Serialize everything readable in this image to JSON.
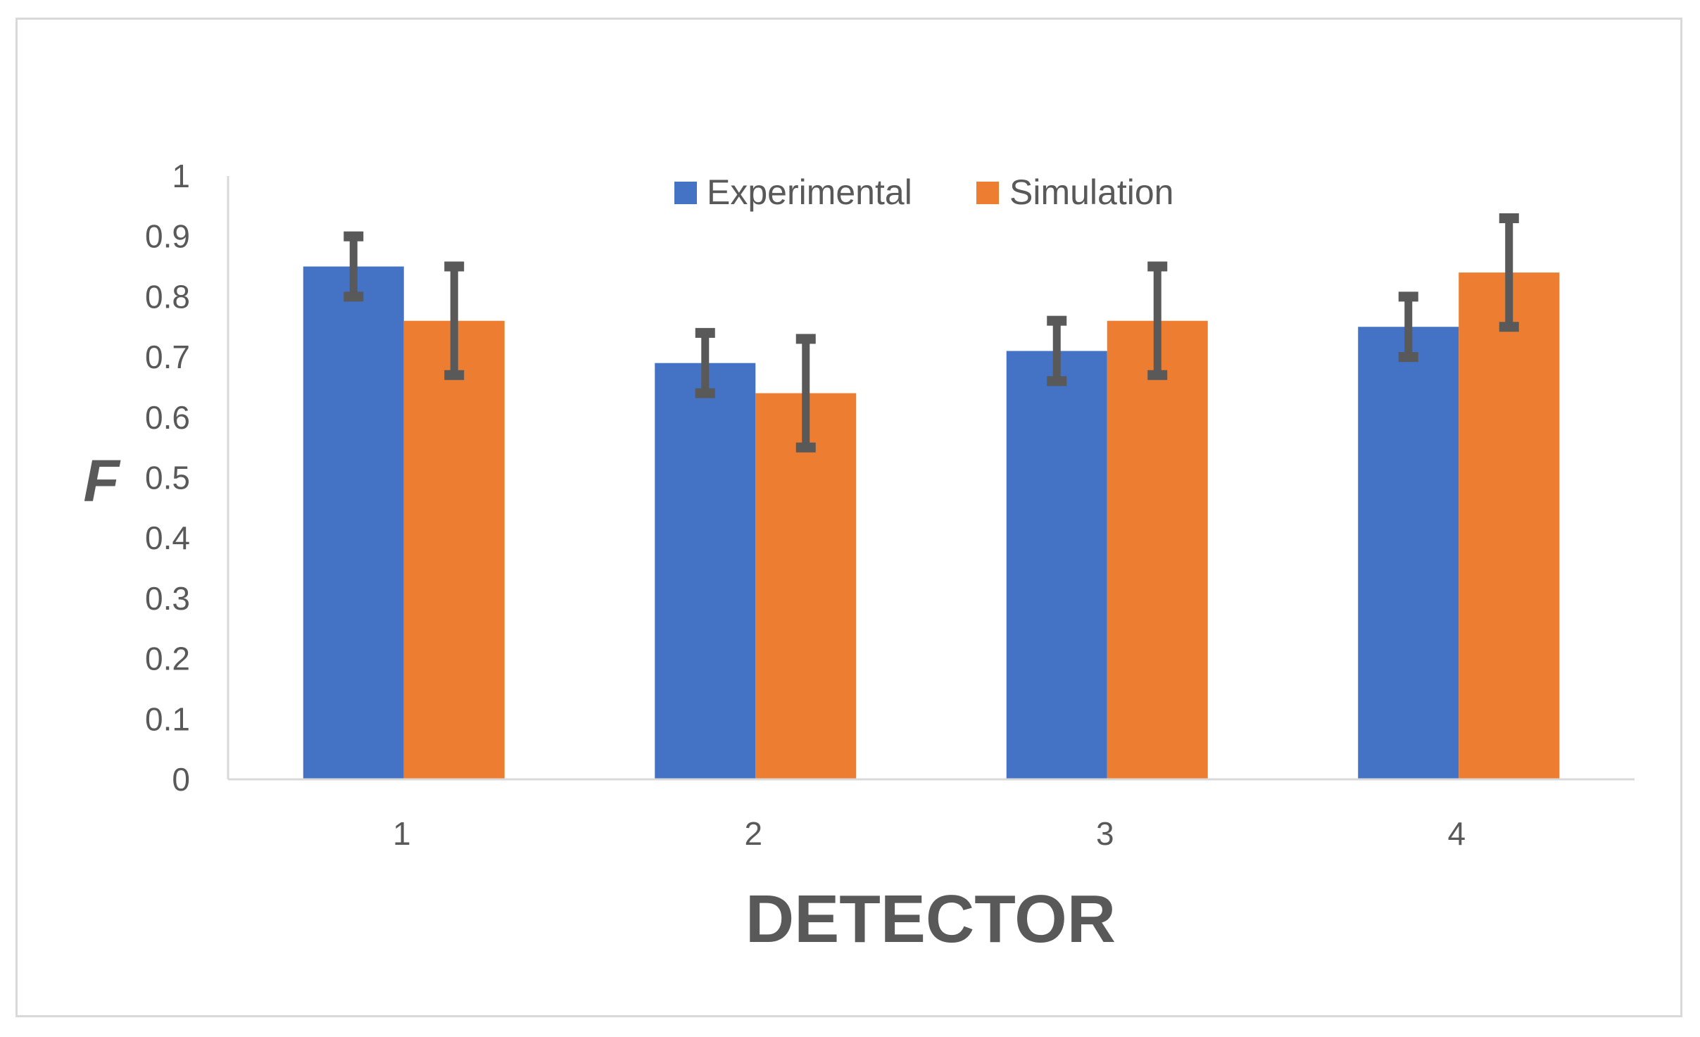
{
  "chart_data": {
    "type": "bar",
    "categories": [
      "1",
      "2",
      "3",
      "4"
    ],
    "series": [
      {
        "name": "Experimental",
        "color": "#4472C4",
        "values": [
          0.85,
          0.69,
          0.71,
          0.75
        ],
        "error": [
          0.05,
          0.05,
          0.05,
          0.05
        ]
      },
      {
        "name": "Simulation",
        "color": "#ED7D31",
        "values": [
          0.76,
          0.64,
          0.76,
          0.84
        ],
        "error": [
          0.09,
          0.09,
          0.09,
          0.09
        ]
      }
    ],
    "y_ticks": [
      "0",
      "0.1",
      "0.2",
      "0.3",
      "0.4",
      "0.5",
      "0.6",
      "0.7",
      "0.8",
      "0.9",
      "1"
    ],
    "xlabel": "DETECTOR",
    "ylabel": "F",
    "ylim": [
      0,
      1
    ],
    "legend_position": "top-center",
    "grid": false,
    "error_bar_color": "#595959"
  }
}
